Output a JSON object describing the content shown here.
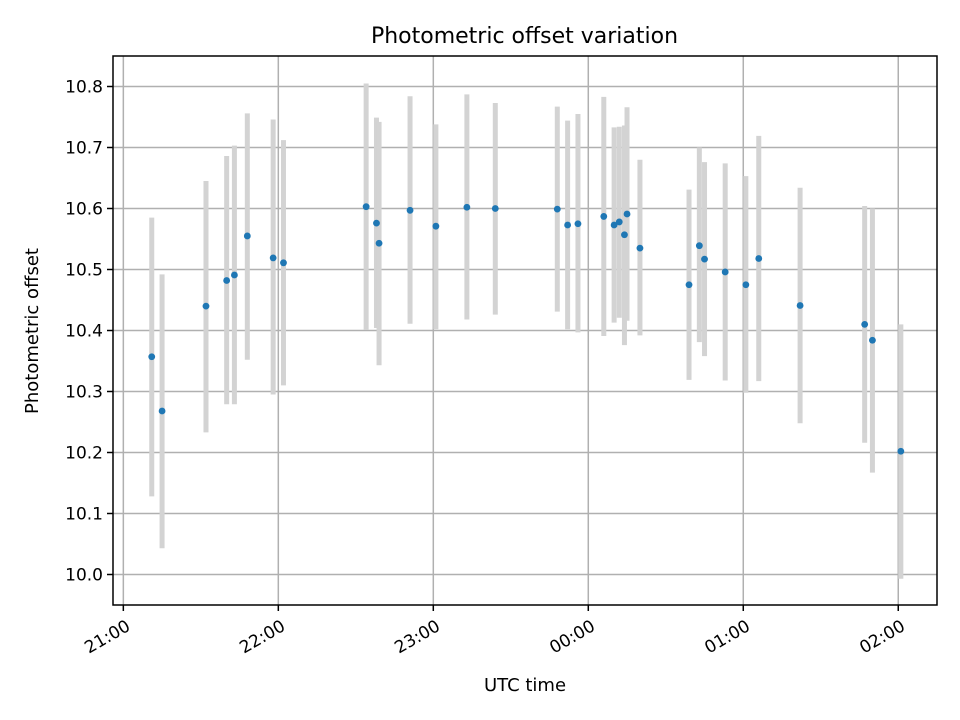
{
  "chart_data": {
    "type": "scatter",
    "title": "Photometric offset variation",
    "xlabel": "UTC time",
    "ylabel": "Photometric offset",
    "x_ticks": [
      "21:00",
      "22:00",
      "23:00",
      "00:00",
      "01:00",
      "02:00"
    ],
    "x_tick_minutes": [
      0,
      60,
      120,
      180,
      240,
      300
    ],
    "xlim_minutes": [
      -4,
      315
    ],
    "y_ticks": [
      "10.0",
      "10.1",
      "10.2",
      "10.3",
      "10.4",
      "10.5",
      "10.6",
      "10.7",
      "10.8"
    ],
    "y_tick_values": [
      10.0,
      10.1,
      10.2,
      10.3,
      10.4,
      10.5,
      10.6,
      10.7,
      10.8
    ],
    "ylim": [
      9.95,
      10.85
    ],
    "grid": true,
    "colors": {
      "marker": "#1f77b4",
      "errorbar": "#d3d3d3"
    },
    "points": [
      {
        "time": "21:11",
        "y": 10.357,
        "err_low": 10.128,
        "err_high": 10.585
      },
      {
        "time": "21:15",
        "y": 10.268,
        "err_low": 10.043,
        "err_high": 10.492
      },
      {
        "time": "21:32",
        "y": 10.44,
        "err_low": 10.233,
        "err_high": 10.645
      },
      {
        "time": "21:40",
        "y": 10.482,
        "err_low": 10.279,
        "err_high": 10.686
      },
      {
        "time": "21:43",
        "y": 10.491,
        "err_low": 10.279,
        "err_high": 10.703
      },
      {
        "time": "21:48",
        "y": 10.555,
        "err_low": 10.352,
        "err_high": 10.756
      },
      {
        "time": "21:58",
        "y": 10.519,
        "err_low": 10.295,
        "err_high": 10.746
      },
      {
        "time": "22:02",
        "y": 10.511,
        "err_low": 10.31,
        "err_high": 10.712
      },
      {
        "time": "22:34",
        "y": 10.603,
        "err_low": 10.401,
        "err_high": 10.805
      },
      {
        "time": "22:38",
        "y": 10.576,
        "err_low": 10.404,
        "err_high": 10.749
      },
      {
        "time": "22:39",
        "y": 10.543,
        "err_low": 10.343,
        "err_high": 10.742
      },
      {
        "time": "22:51",
        "y": 10.597,
        "err_low": 10.411,
        "err_high": 10.784
      },
      {
        "time": "23:01",
        "y": 10.571,
        "err_low": 10.402,
        "err_high": 10.738
      },
      {
        "time": "23:13",
        "y": 10.602,
        "err_low": 10.418,
        "err_high": 10.787
      },
      {
        "time": "23:24",
        "y": 10.6,
        "err_low": 10.426,
        "err_high": 10.773
      },
      {
        "time": "23:48",
        "y": 10.599,
        "err_low": 10.431,
        "err_high": 10.767
      },
      {
        "time": "23:52",
        "y": 10.573,
        "err_low": 10.402,
        "err_high": 10.744
      },
      {
        "time": "23:56",
        "y": 10.575,
        "err_low": 10.397,
        "err_high": 10.755
      },
      {
        "time": "00:06",
        "y": 10.587,
        "err_low": 10.391,
        "err_high": 10.783
      },
      {
        "time": "00:10",
        "y": 10.573,
        "err_low": 10.413,
        "err_high": 10.733
      },
      {
        "time": "00:12",
        "y": 10.578,
        "err_low": 10.421,
        "err_high": 10.734
      },
      {
        "time": "00:14",
        "y": 10.557,
        "err_low": 10.376,
        "err_high": 10.736
      },
      {
        "time": "00:15",
        "y": 10.591,
        "err_low": 10.416,
        "err_high": 10.766
      },
      {
        "time": "00:20",
        "y": 10.535,
        "err_low": 10.392,
        "err_high": 10.68
      },
      {
        "time": "00:39",
        "y": 10.475,
        "err_low": 10.319,
        "err_high": 10.631
      },
      {
        "time": "00:43",
        "y": 10.539,
        "err_low": 10.381,
        "err_high": 10.7
      },
      {
        "time": "00:45",
        "y": 10.517,
        "err_low": 10.358,
        "err_high": 10.676
      },
      {
        "time": "00:53",
        "y": 10.496,
        "err_low": 10.318,
        "err_high": 10.674
      },
      {
        "time": "01:01",
        "y": 10.475,
        "err_low": 10.298,
        "err_high": 10.653
      },
      {
        "time": "01:06",
        "y": 10.518,
        "err_low": 10.317,
        "err_high": 10.719
      },
      {
        "time": "01:22",
        "y": 10.441,
        "err_low": 10.248,
        "err_high": 10.634
      },
      {
        "time": "01:47",
        "y": 10.41,
        "err_low": 10.216,
        "err_high": 10.604
      },
      {
        "time": "01:50",
        "y": 10.384,
        "err_low": 10.167,
        "err_high": 10.6
      },
      {
        "time": "02:01",
        "y": 10.202,
        "err_low": 9.993,
        "err_high": 10.41
      }
    ]
  }
}
